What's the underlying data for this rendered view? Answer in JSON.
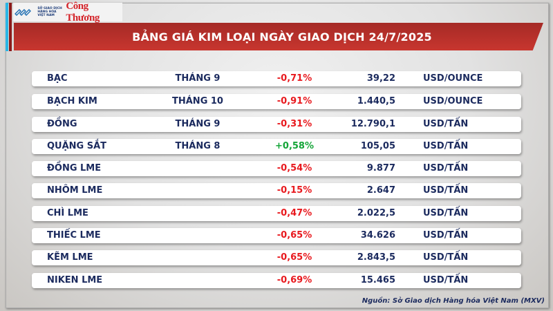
{
  "logos": {
    "sgd": "SỞ GIAO DỊCH HÀNG HÓA VIỆT NAM",
    "congthuong": "Công Thương"
  },
  "title": "BẢNG GIÁ KIM LOẠI NGÀY GIAO DỊCH 24/7/2025",
  "colors": {
    "negative": "#e8191e",
    "positive": "#14a538",
    "text": "#1b2a5e",
    "header": "#b8302b"
  },
  "rows": [
    {
      "name": "BẠC",
      "month": "THÁNG 9",
      "change": "-0,71%",
      "value": "39,22",
      "unit": "USD/OUNCE"
    },
    {
      "name": "BẠCH KIM",
      "month": "THÁNG 10",
      "change": "-0,91%",
      "value": "1.440,5",
      "unit": "USD/OUNCE"
    },
    {
      "name": "ĐỒNG",
      "month": "THÁNG 9",
      "change": "-0,31%",
      "value": "12.790,1",
      "unit": "USD/TẤN"
    },
    {
      "name": "QUẶNG SẮT",
      "month": "THÁNG 8",
      "change": "+0,58%",
      "value": "105,05",
      "unit": "USD/TẤN"
    },
    {
      "name": "ĐỒNG LME",
      "month": "",
      "change": "-0,54%",
      "value": "9.877",
      "unit": "USD/TẤN"
    },
    {
      "name": "NHÔM LME",
      "month": "",
      "change": "-0,15%",
      "value": "2.647",
      "unit": "USD/TẤN"
    },
    {
      "name": "CHÌ LME",
      "month": "",
      "change": "-0,47%",
      "value": "2.022,5",
      "unit": "USD/TẤN"
    },
    {
      "name": "THIẾC LME",
      "month": "",
      "change": "-0,65%",
      "value": "34.626",
      "unit": "USD/TẤN"
    },
    {
      "name": "KẼM LME",
      "month": "",
      "change": "-0,65%",
      "value": "2.843,5",
      "unit": "USD/TẤN"
    },
    {
      "name": "NIKEN LME",
      "month": "",
      "change": "-0,69%",
      "value": "15.465",
      "unit": "USD/TẤN"
    }
  ],
  "source": "Nguồn: Sở Giao dịch Hàng hóa Việt Nam (MXV)"
}
